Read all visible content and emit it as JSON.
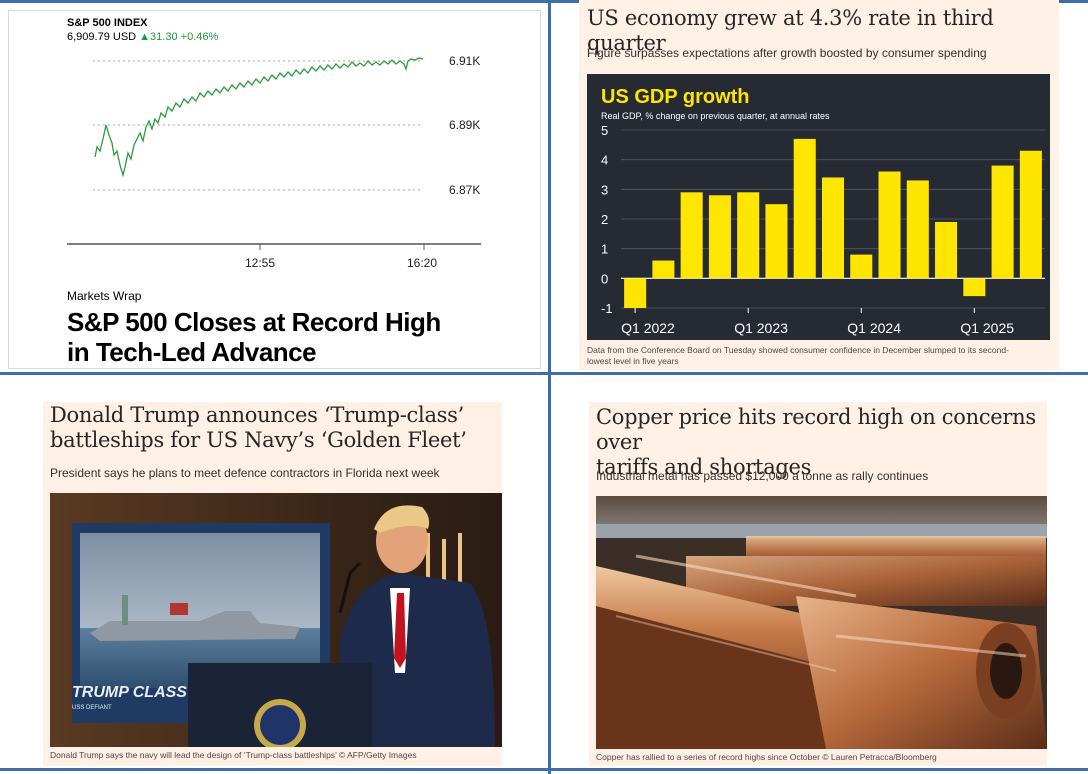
{
  "sp500": {
    "index_name": "S&P 500 INDEX",
    "price": "6,909.79 USD",
    "change": "▲31.30 +0.46%",
    "y_ticks": [
      "6.91K",
      "6.89K",
      "6.87K"
    ],
    "x_ticks": [
      "12:55",
      "16:20"
    ],
    "kicker": "Markets Wrap",
    "headline_line1": "S&P 500 Closes at Record High",
    "headline_line2": "in Tech-Led Advance",
    "accent_color": "#2e9c3f"
  },
  "gdp_story": {
    "headline": "US economy grew at 4.3% rate in third quarter",
    "subhead": "Figure surpasses expectations after growth boosted by consumer spending",
    "caption_line1": "Data from the Conference Board on Tuesday showed consumer confidence in December slumped to its second-",
    "caption_line2": "lowest level in five years"
  },
  "chart_data": {
    "type": "bar",
    "title": "US GDP growth",
    "subtitle": "Real GDP, % change on previous quarter, at annual rates",
    "categories": [
      "Q1 2022",
      "Q2 2022",
      "Q3 2022",
      "Q4 2022",
      "Q1 2023",
      "Q2 2023",
      "Q3 2023",
      "Q4 2023",
      "Q1 2024",
      "Q2 2024",
      "Q3 2024",
      "Q4 2024",
      "Q1 2025",
      "Q2 2025",
      "Q3 2025"
    ],
    "values": [
      -1.0,
      0.6,
      2.9,
      2.8,
      2.9,
      2.5,
      4.7,
      3.4,
      0.8,
      3.6,
      3.3,
      1.9,
      -0.6,
      3.8,
      4.3
    ],
    "x_tick_labels": [
      "Q1 2022",
      "Q1 2023",
      "Q1 2024",
      "Q1 2025"
    ],
    "y_ticks": [
      "5",
      "4",
      "3",
      "2",
      "1",
      "0",
      "-1"
    ],
    "ylim": [
      -1,
      5
    ],
    "bar_color": "#ffe600",
    "background_color": "#262a33"
  },
  "trump_story": {
    "headline_line1": "Donald Trump announces ‘Trump-class’",
    "headline_line2": "battleships for US Navy’s ‘Golden Fleet’",
    "subhead": "President says he plans to meet defence contractors in Florida next week",
    "photo_sign": "TRUMP CLASS",
    "photo_sign_sub": "USS DEFIANT",
    "caption": "Donald Trump says the navy will lead the design of ‘Trump-class battleships’ © AFP/Getty Images"
  },
  "copper_story": {
    "headline_line1": "Copper price hits record high on concerns over",
    "headline_line2": "tariffs and shortages",
    "subhead": "Industrial metal has passed $12,000 a tonne as rally continues",
    "caption": "Copper has rallied to a series of record highs since October © Lauren Petracca/Bloomberg"
  }
}
